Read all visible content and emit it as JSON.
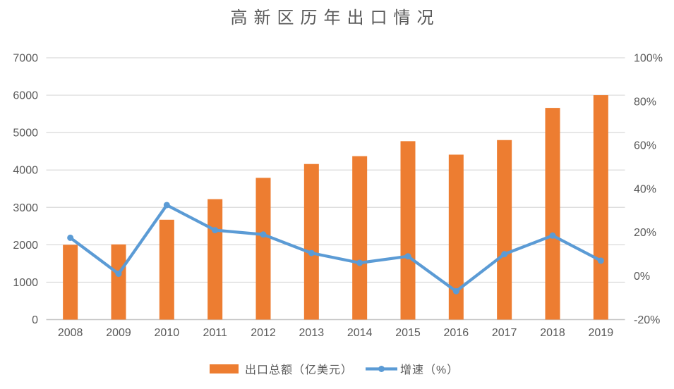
{
  "chart_data": {
    "type": "combo",
    "title": "高新区历年出口情况",
    "categories": [
      "2008",
      "2009",
      "2010",
      "2011",
      "2012",
      "2013",
      "2014",
      "2015",
      "2016",
      "2017",
      "2018",
      "2019"
    ],
    "series": [
      {
        "name": "出口总额（亿美元）",
        "type": "bar",
        "axis": "left",
        "color": "#ED7D31",
        "values": [
          2000,
          2010,
          2670,
          3220,
          3790,
          4160,
          4370,
          4770,
          4410,
          4800,
          5660,
          6000
        ]
      },
      {
        "name": "增速（%）",
        "type": "line",
        "axis": "right",
        "color": "#5B9BD5",
        "values": [
          17.5,
          1,
          32.5,
          21,
          19,
          10.5,
          6,
          9,
          -7,
          10,
          18.5,
          7
        ]
      }
    ],
    "left_axis": {
      "min": 0,
      "max": 7000,
      "tick_labels": [
        "0",
        "1000",
        "2000",
        "3000",
        "4000",
        "5000",
        "6000",
        "7000"
      ]
    },
    "right_axis": {
      "min": -20,
      "max": 100,
      "tick_labels": [
        "-20%",
        "0%",
        "20%",
        "40%",
        "60%",
        "80%",
        "100%"
      ]
    },
    "grid": true,
    "legend_position": "bottom",
    "colors": {
      "gridline": "#D9D9D9",
      "baseline": "#C6C6C6",
      "axis_text": "#595959",
      "title_text": "#595959"
    }
  }
}
